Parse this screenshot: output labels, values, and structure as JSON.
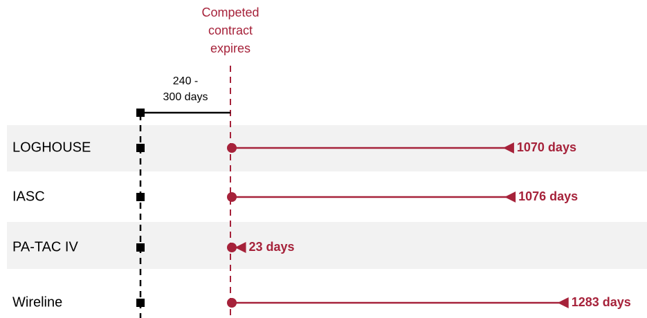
{
  "chart_data": {
    "type": "timeline",
    "annotation": [
      "Competed",
      "contract",
      "expires"
    ],
    "bracket_label": [
      "240 -",
      "300 days"
    ],
    "categories": [
      "LOGHOUSE",
      "IASC",
      "PA-TAC IV",
      "Wireline"
    ],
    "values": [
      1070,
      1076,
      23,
      1283
    ],
    "value_labels": [
      "1070 days",
      "1076 days",
      "23 days",
      "1283 days"
    ],
    "color": "#a6223a"
  }
}
